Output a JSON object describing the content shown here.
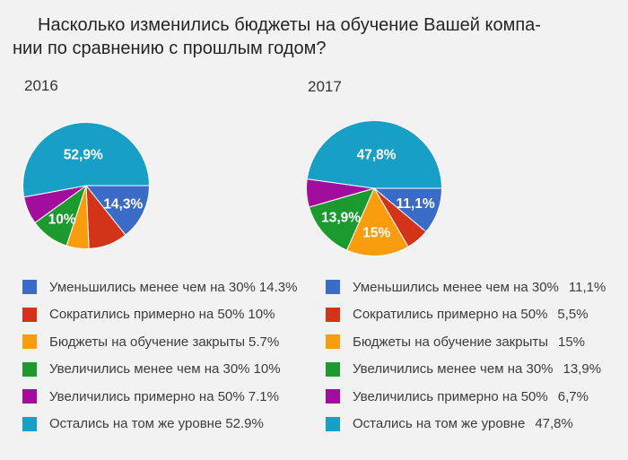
{
  "title": {
    "line1": "Насколько изменились бюджеты на обучение Вашей компа-",
    "line2": "нии по сравнению с прошлым годом?"
  },
  "background_color": "#f2f2f2",
  "text_color": "#3c3c3c",
  "chart_data": [
    {
      "type": "pie",
      "year": "2016",
      "start_angle_deg": 0,
      "direction": "clockwise",
      "legend_position": "bottom-left",
      "slices": [
        {
          "label": "Уменьшились менее чем на 30%",
          "value": 14.3,
          "color": "#3a6bc6",
          "pie_label": "14,3%",
          "legend_value": "14.3%"
        },
        {
          "label": "Сократились примерно на 50%",
          "value": 10,
          "color": "#d33419",
          "pie_label": "",
          "legend_value": "10%"
        },
        {
          "label": "Бюджеты на обучение закрыты",
          "value": 5.7,
          "color": "#f99d0f",
          "pie_label": "",
          "legend_value": "5.7%"
        },
        {
          "label": "Увеличились менее чем на 30%",
          "value": 10,
          "color": "#1c9a30",
          "pie_label": "10%",
          "legend_value": "10%"
        },
        {
          "label": "Увеличились примерно на 50%",
          "value": 7.1,
          "color": "#a30d9e",
          "pie_label": "",
          "legend_value": "7.1%"
        },
        {
          "label": "Остались на том же уровне",
          "value": 52.9,
          "color": "#189fc6",
          "pie_label": "52,9%",
          "legend_value": "52.9%"
        }
      ]
    },
    {
      "type": "pie",
      "year": "2017",
      "start_angle_deg": 0,
      "direction": "clockwise",
      "legend_position": "bottom-right",
      "slices": [
        {
          "label": "Уменьшились менее чем на 30%",
          "value": 11.1,
          "color": "#3a6bc6",
          "pie_label": "11,1%",
          "legend_value": "11,1%"
        },
        {
          "label": "Сократились примерно на 50%",
          "value": 5.5,
          "color": "#d33419",
          "pie_label": "",
          "legend_value": "5,5%"
        },
        {
          "label": "Бюджеты на обучение закрыты",
          "value": 15,
          "color": "#f99d0f",
          "pie_label": "15%",
          "legend_value": "15%"
        },
        {
          "label": "Увеличились менее чем на 30%",
          "value": 13.9,
          "color": "#1c9a30",
          "pie_label": "13,9%",
          "legend_value": "13,9%"
        },
        {
          "label": "Увеличились примерно на 50%",
          "value": 6.7,
          "color": "#a30d9e",
          "pie_label": "",
          "legend_value": "6,7%"
        },
        {
          "label": "Остались на том же уровне",
          "value": 47.8,
          "color": "#189fc6",
          "pie_label": "47,8%",
          "legend_value": "47,8%"
        }
      ]
    }
  ]
}
